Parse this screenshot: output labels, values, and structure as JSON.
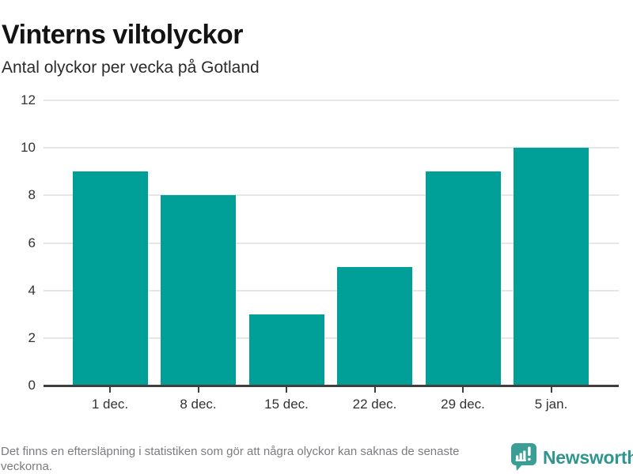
{
  "header": {
    "title": "Vinterns viltolyckor",
    "subtitle": "Antal olyckor per vecka på Gotland"
  },
  "chart_data": {
    "type": "bar",
    "title": "Vinterns viltolyckor",
    "subtitle": "Antal olyckor per vecka på Gotland",
    "categories": [
      "1 dec.",
      "8 dec.",
      "15 dec.",
      "22 dec.",
      "29 dec.",
      "5 jan."
    ],
    "values": [
      9,
      8,
      3,
      5,
      9,
      10
    ],
    "xlabel": "",
    "ylabel": "Antal olyckor",
    "ylim": [
      0,
      12
    ],
    "yticks": [
      0,
      2,
      4,
      6,
      8,
      10,
      12
    ],
    "grid": true,
    "legend": false,
    "bar_color": "#00a099"
  },
  "footer": {
    "note": "Det finns en eftersläpning i statistiken som gör att några olyckor kan saknas de senaste veckorna.",
    "brand": {
      "name": "Newsworthy",
      "icon": "speech-bubble-bar-chart-icon",
      "icon_color": "#3a9d96",
      "text_color": "#2e968f"
    }
  }
}
